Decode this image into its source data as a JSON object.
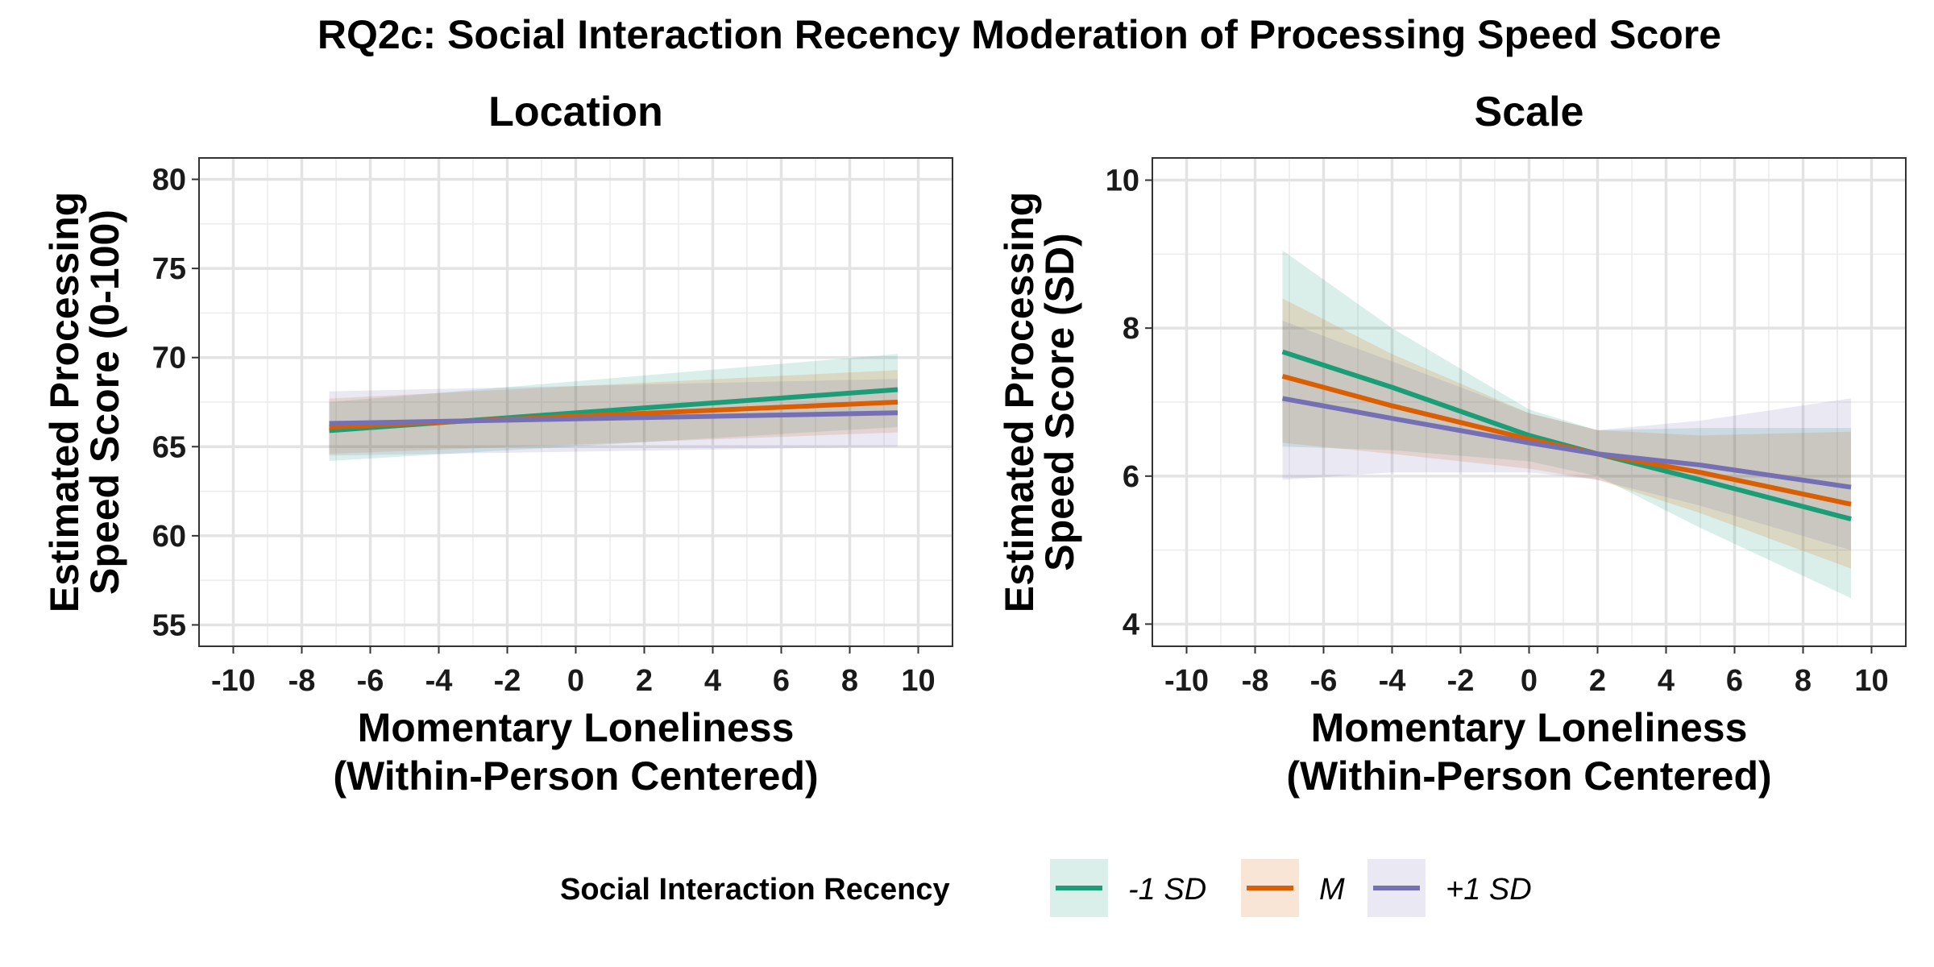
{
  "title": "RQ2c: Social Interaction Recency Moderation of Processing Speed Score",
  "legend": {
    "title": "Social Interaction Recency",
    "position": "bottom",
    "entries": [
      {
        "label": "-1 SD",
        "color": "#1B9E77"
      },
      {
        "label": "M",
        "color": "#D95F02"
      },
      {
        "label": "+1 SD",
        "color": "#7570B3"
      }
    ]
  },
  "chart_data": [
    {
      "type": "line",
      "title": "Location",
      "xlabel": [
        "Momentary Loneliness",
        "(Within-Person Centered)"
      ],
      "ylabel": [
        "Estimated Processing",
        "Speed Score (0-100)"
      ],
      "xlim": [
        -11,
        11
      ],
      "ylim": [
        53.8,
        81.2
      ],
      "x_ticks": [
        -10,
        -8,
        -6,
        -4,
        -2,
        0,
        2,
        4,
        6,
        8,
        10
      ],
      "y_ticks": [
        55,
        60,
        65,
        70,
        75,
        80
      ],
      "grid": true,
      "x": [
        -7.2,
        9.4
      ],
      "series": [
        {
          "name": "-1 SD",
          "color": "#1B9E77",
          "values": [
            65.9,
            68.2
          ],
          "lower": [
            64.2,
            66.1
          ],
          "upper": [
            67.5,
            70.2
          ]
        },
        {
          "name": "M",
          "color": "#D95F02",
          "values": [
            66.1,
            67.5
          ],
          "lower": [
            64.6,
            65.8
          ],
          "upper": [
            67.7,
            69.3
          ]
        },
        {
          "name": "+1 SD",
          "color": "#7570B3",
          "values": [
            66.3,
            66.9
          ],
          "lower": [
            64.5,
            65.0
          ],
          "upper": [
            68.1,
            68.8
          ]
        }
      ]
    },
    {
      "type": "line",
      "title": "Scale",
      "xlabel": [
        "Momentary Loneliness",
        "(Within-Person Centered)"
      ],
      "ylabel": [
        "Estimated Processing",
        "Speed Score (SD)"
      ],
      "xlim": [
        -11,
        11
      ],
      "ylim": [
        3.7,
        10.3
      ],
      "x_ticks": [
        -10,
        -8,
        -6,
        -4,
        -2,
        0,
        2,
        4,
        6,
        8,
        10
      ],
      "y_ticks": [
        4,
        6,
        8,
        10
      ],
      "grid": true,
      "x": [
        -7.2,
        -4,
        0,
        2,
        5,
        9.4
      ],
      "series": [
        {
          "name": "-1 SD",
          "color": "#1B9E77",
          "values": [
            7.68,
            7.2,
            6.55,
            6.3,
            5.95,
            5.42
          ],
          "lower": [
            6.4,
            6.35,
            6.2,
            6.0,
            5.3,
            4.35
          ],
          "upper": [
            9.05,
            8.0,
            6.9,
            6.62,
            6.65,
            6.65
          ]
        },
        {
          "name": "M",
          "color": "#D95F02",
          "values": [
            7.35,
            6.95,
            6.5,
            6.3,
            6.05,
            5.62
          ],
          "lower": [
            6.45,
            6.3,
            6.1,
            5.95,
            5.5,
            4.75
          ],
          "upper": [
            8.4,
            7.65,
            6.85,
            6.62,
            6.55,
            6.6
          ]
        },
        {
          "name": "+1 SD",
          "color": "#7570B3",
          "values": [
            7.05,
            6.78,
            6.45,
            6.3,
            6.15,
            5.85
          ],
          "lower": [
            5.95,
            6.05,
            6.05,
            5.95,
            5.6,
            5.0
          ],
          "upper": [
            8.1,
            7.55,
            6.85,
            6.62,
            6.75,
            7.05
          ]
        }
      ]
    }
  ]
}
